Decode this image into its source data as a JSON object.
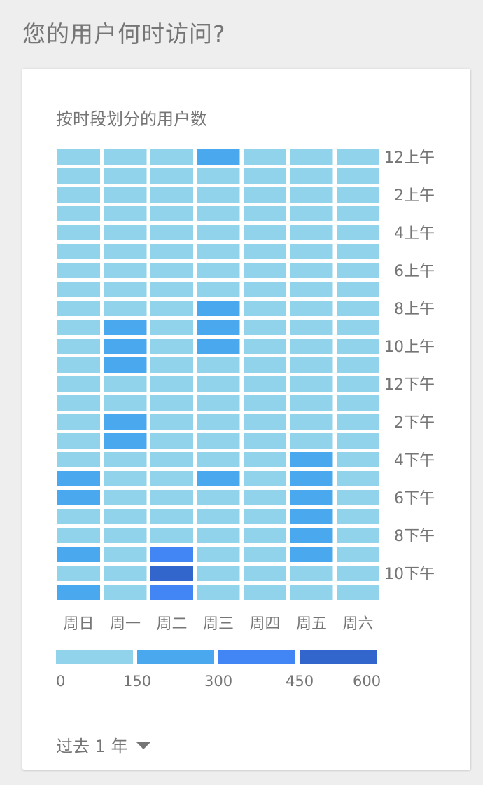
{
  "page": {
    "title": "您的用户何时访问?"
  },
  "card": {
    "title": "按时段划分的用户数",
    "range_label": "过去 1 年",
    "range_icon": "caret-down-icon"
  },
  "colors": {
    "bin0": "#91d3ea",
    "bin1": "#4aa8ee",
    "bin2": "#4285f4",
    "bin3": "#3366cc"
  },
  "chart_data": {
    "type": "heatmap",
    "title": "按时段划分的用户数",
    "x_categories": [
      "周日",
      "周一",
      "周二",
      "周三",
      "周四",
      "周五",
      "周六"
    ],
    "y_tick_labels": [
      {
        "hour": 0,
        "label": "12上午"
      },
      {
        "hour": 2,
        "label": "2上午"
      },
      {
        "hour": 4,
        "label": "4上午"
      },
      {
        "hour": 6,
        "label": "6上午"
      },
      {
        "hour": 8,
        "label": "8上午"
      },
      {
        "hour": 10,
        "label": "10上午"
      },
      {
        "hour": 12,
        "label": "12下午"
      },
      {
        "hour": 14,
        "label": "2下午"
      },
      {
        "hour": 16,
        "label": "4下午"
      },
      {
        "hour": 18,
        "label": "6下午"
      },
      {
        "hour": 20,
        "label": "8下午"
      },
      {
        "hour": 22,
        "label": "10下午"
      }
    ],
    "legend": {
      "thresholds": [
        0,
        150,
        300,
        450,
        600
      ],
      "labels": [
        "0",
        "150",
        "300",
        "450",
        "600"
      ]
    },
    "values": [
      [
        100,
        100,
        100,
        200,
        100,
        100,
        100
      ],
      [
        100,
        100,
        100,
        100,
        100,
        100,
        100
      ],
      [
        100,
        100,
        100,
        100,
        100,
        100,
        100
      ],
      [
        100,
        100,
        100,
        100,
        100,
        100,
        100
      ],
      [
        100,
        100,
        100,
        100,
        100,
        100,
        100
      ],
      [
        100,
        100,
        100,
        100,
        100,
        100,
        100
      ],
      [
        100,
        100,
        100,
        100,
        100,
        100,
        100
      ],
      [
        100,
        100,
        100,
        100,
        100,
        100,
        100
      ],
      [
        100,
        100,
        100,
        200,
        100,
        100,
        100
      ],
      [
        100,
        200,
        100,
        200,
        100,
        100,
        100
      ],
      [
        100,
        200,
        100,
        200,
        100,
        100,
        100
      ],
      [
        100,
        200,
        100,
        100,
        100,
        100,
        100
      ],
      [
        100,
        100,
        100,
        100,
        100,
        100,
        100
      ],
      [
        100,
        100,
        100,
        100,
        100,
        100,
        100
      ],
      [
        100,
        200,
        100,
        100,
        100,
        100,
        100
      ],
      [
        100,
        200,
        100,
        100,
        100,
        100,
        100
      ],
      [
        100,
        100,
        100,
        100,
        100,
        200,
        100
      ],
      [
        200,
        100,
        100,
        200,
        100,
        200,
        100
      ],
      [
        200,
        100,
        100,
        100,
        100,
        200,
        100
      ],
      [
        100,
        100,
        100,
        100,
        100,
        200,
        100
      ],
      [
        100,
        100,
        100,
        100,
        100,
        200,
        100
      ],
      [
        200,
        100,
        350,
        100,
        100,
        200,
        100
      ],
      [
        100,
        100,
        500,
        100,
        100,
        100,
        100
      ],
      [
        200,
        100,
        350,
        100,
        100,
        100,
        100
      ]
    ]
  }
}
